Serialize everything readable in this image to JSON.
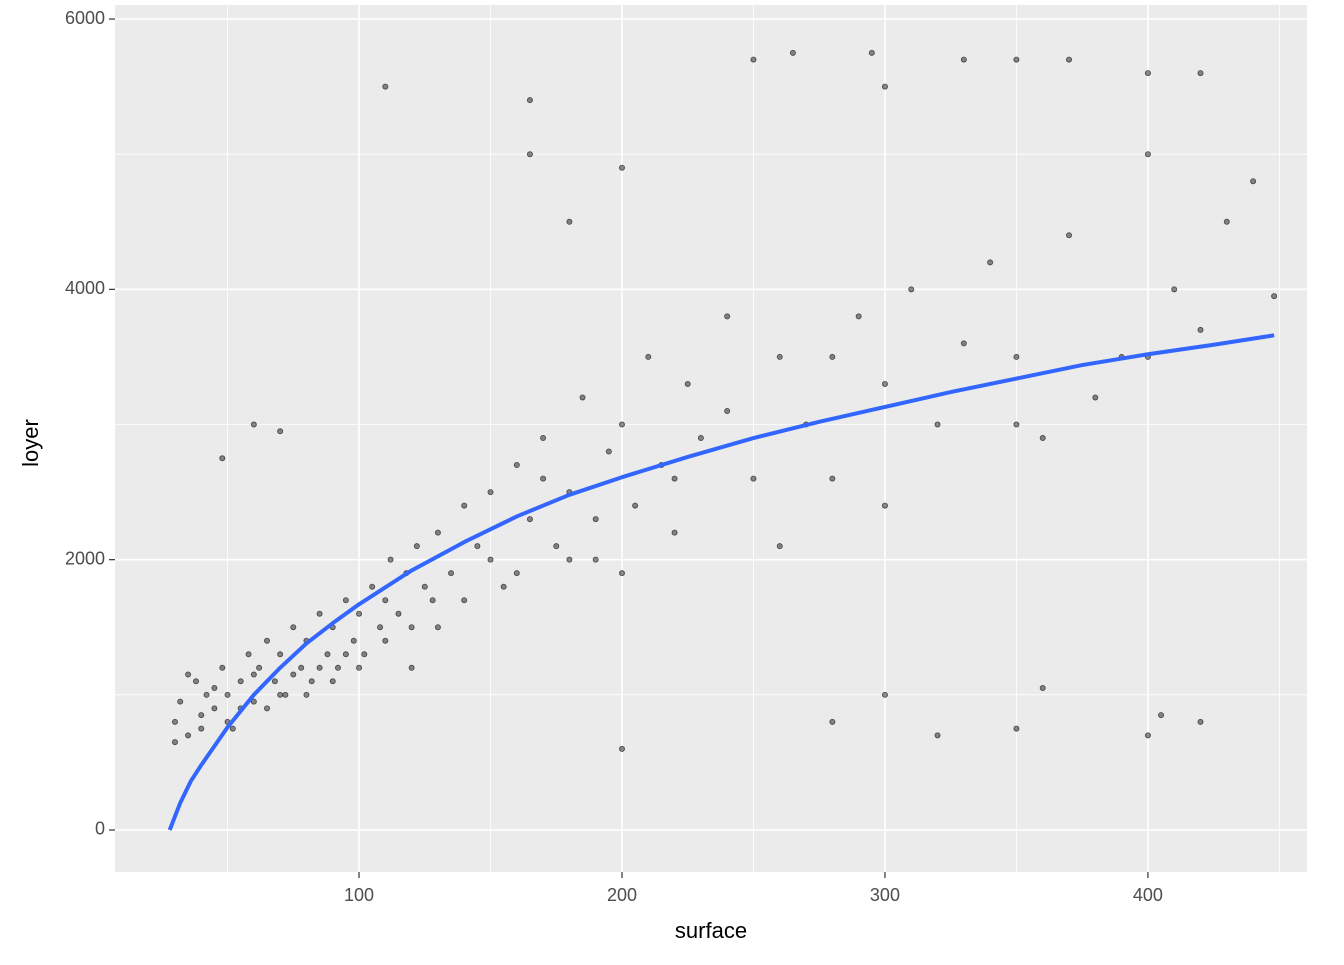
{
  "chart_data": {
    "type": "scatter",
    "x_label": "surface",
    "y_label": "loyer",
    "xlim": [
      7.2,
      460.5
    ],
    "ylim": [
      -311,
      6104
    ],
    "xticks": [
      100,
      200,
      300,
      400
    ],
    "yticks": [
      0,
      2000,
      4000,
      6000
    ],
    "xminor": [
      50,
      150,
      250,
      350,
      450
    ],
    "yminor": [
      1000,
      3000,
      5000
    ],
    "grid": true,
    "color": "#000000",
    "x": [
      30,
      32,
      35,
      38,
      40,
      42,
      45,
      48,
      50,
      52,
      55,
      58,
      60,
      62,
      65,
      68,
      70,
      72,
      75,
      78,
      80,
      82,
      85,
      88,
      90,
      92,
      95,
      98,
      100,
      102,
      105,
      108,
      110,
      112,
      115,
      118,
      120,
      122,
      125,
      128,
      130,
      135,
      140,
      145,
      150,
      155,
      160,
      165,
      170,
      175,
      180,
      185,
      190,
      195,
      200,
      205,
      210,
      215,
      220,
      225,
      230,
      240,
      250,
      260,
      270,
      280,
      290,
      300,
      310,
      320,
      330,
      340,
      350,
      360,
      370,
      380,
      390,
      400,
      410,
      420,
      430,
      440,
      448,
      30,
      35,
      40,
      45,
      50,
      55,
      60,
      65,
      70,
      75,
      80,
      85,
      90,
      95,
      100,
      110,
      120,
      130,
      140,
      150,
      160,
      170,
      180,
      190,
      200,
      220,
      240,
      260,
      280,
      300,
      350,
      400,
      110,
      165,
      165,
      180,
      200,
      250,
      265,
      295,
      300,
      330,
      350,
      370,
      400,
      420,
      200,
      280,
      300,
      320,
      350,
      360,
      400,
      405,
      420,
      48,
      60,
      70
    ],
    "y": [
      800,
      950,
      700,
      1100,
      850,
      1000,
      900,
      1200,
      1000,
      750,
      1100,
      1300,
      950,
      1200,
      1400,
      1100,
      1300,
      1000,
      1500,
      1200,
      1400,
      1100,
      1600,
      1300,
      1500,
      1200,
      1700,
      1400,
      1600,
      1300,
      1800,
      1500,
      1700,
      2000,
      1600,
      1900,
      1500,
      2100,
      1800,
      1700,
      2200,
      1900,
      2400,
      2100,
      2500,
      1800,
      2700,
      2300,
      2900,
      2100,
      2500,
      3200,
      2000,
      2800,
      3000,
      2400,
      3500,
      2700,
      2200,
      3300,
      2900,
      3800,
      2600,
      3500,
      3000,
      2600,
      3800,
      3300,
      4000,
      3000,
      3600,
      4200,
      3500,
      2900,
      4400,
      3200,
      3500,
      5000,
      4000,
      3700,
      4500,
      4800,
      3950,
      650,
      1150,
      750,
      1050,
      800,
      900,
      1150,
      900,
      1000,
      1150,
      1000,
      1200,
      1100,
      1300,
      1200,
      1400,
      1200,
      1500,
      1700,
      2000,
      1900,
      2600,
      2000,
      2300,
      1900,
      2600,
      3100,
      2100,
      3500,
      2400,
      3000,
      3500,
      5500,
      5400,
      5000,
      4500,
      4900,
      5700,
      5750,
      5750,
      5500,
      5700,
      5700,
      5700,
      5600,
      5600,
      600,
      800,
      1000,
      700,
      750,
      1050,
      700,
      850,
      800,
      2750,
      3000,
      2950
    ],
    "smooth": {
      "color": "#3366ff",
      "x": [
        28,
        32,
        36,
        40,
        50,
        60,
        70,
        80,
        90,
        100,
        120,
        140,
        160,
        180,
        200,
        225,
        250,
        275,
        300,
        325,
        350,
        375,
        400,
        425,
        448
      ],
      "y": [
        0,
        200,
        360,
        480,
        760,
        1000,
        1200,
        1380,
        1530,
        1670,
        1920,
        2130,
        2320,
        2480,
        2610,
        2760,
        2900,
        3020,
        3130,
        3240,
        3340,
        3440,
        3520,
        3590,
        3660
      ]
    }
  }
}
